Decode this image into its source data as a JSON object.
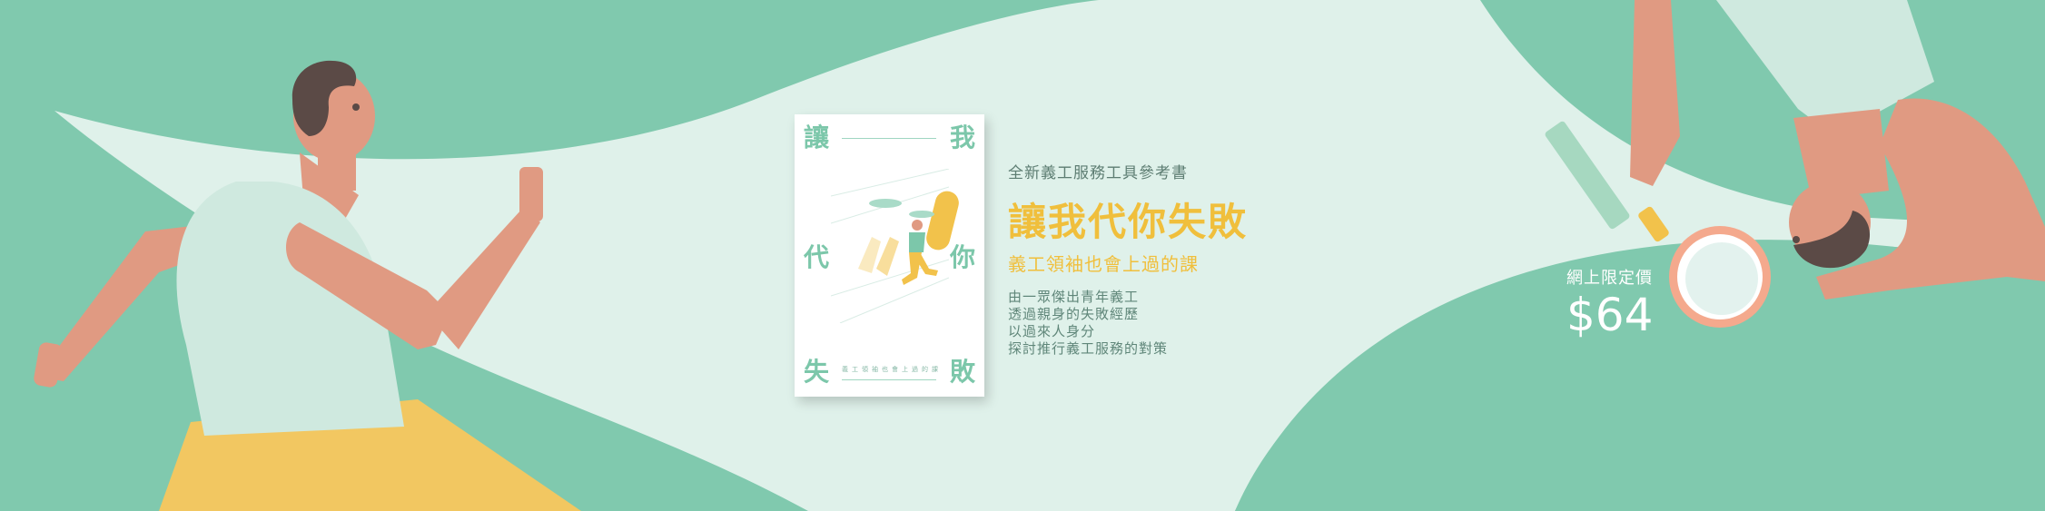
{
  "book_cover": {
    "chars": [
      "讓",
      "我",
      "代",
      "你",
      "失",
      "敗"
    ],
    "badge_text": "",
    "vertical_subtitle": "義工領袖也會上過的課"
  },
  "promo": {
    "kicker": "全新義工服務工具參考書",
    "title": "讓我代你失敗",
    "subtitle": "義工領袖也會上過的課",
    "description": [
      "由一眾傑出青年義工",
      "透過親身的失敗經歷",
      "以過來人身分",
      "探討推行義工服務的對策"
    ]
  },
  "price": {
    "label": "網上限定價",
    "value": "$64"
  },
  "colors": {
    "background": "#80c9ae",
    "light_panel": "#dff1ea",
    "accent_yellow": "#f0bf3c",
    "skin": "#e09a82",
    "shirt": "#cfe9df",
    "hair": "#5b4a46"
  },
  "icons": [
    "runner-figure",
    "reaching-figure",
    "magnifying-glass-icon"
  ]
}
